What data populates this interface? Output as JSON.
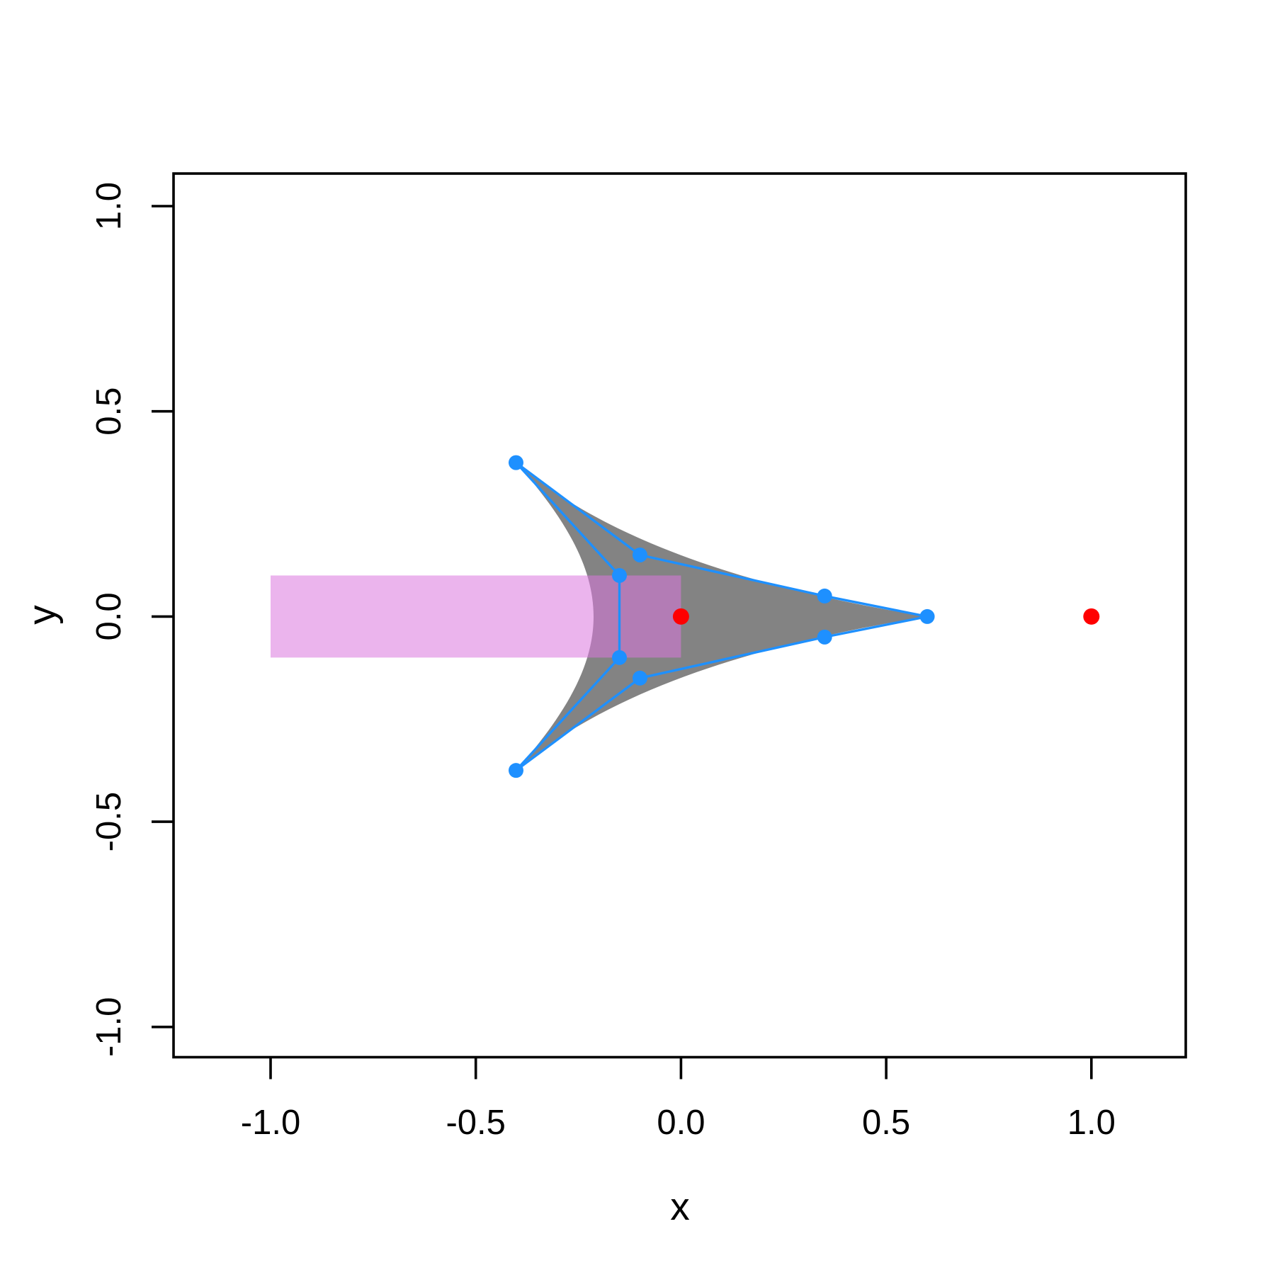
{
  "chart_data": {
    "type": "scatter",
    "title": "",
    "xlabel": "x",
    "ylabel": "y",
    "xlim": [
      -1.236,
      1.23
    ],
    "ylim": [
      -1.073,
      1.079
    ],
    "grid": false,
    "background_color": "#ffffff",
    "axis_color": "#000000",
    "x_ticks": {
      "values": [
        -1.0,
        -0.5,
        0.0,
        0.5,
        1.0
      ],
      "labels": [
        "-1.0",
        "-0.5",
        "0.0",
        "0.5",
        "1.0"
      ]
    },
    "y_ticks": {
      "values": [
        -1.0,
        -0.5,
        0.0,
        0.5,
        1.0
      ],
      "labels": [
        "-1.0",
        "-0.5",
        "0.0",
        "0.5",
        "1.0"
      ]
    },
    "gray_region": {
      "name": "curved-triangle-region",
      "fill": "#838383",
      "cusps": [
        [
          0.6,
          0.0
        ],
        [
          -0.402,
          0.375
        ],
        [
          -0.402,
          -0.375
        ]
      ],
      "start": [
        -0.402,
        0.375
      ],
      "bezier_edges": [
        {
          "c1": [
            -0.2,
            0.2
          ],
          "c2": [
            0.13,
            0.075
          ],
          "end": [
            0.6,
            0.0
          ]
        },
        {
          "c1": [
            0.13,
            -0.075
          ],
          "c2": [
            -0.2,
            -0.2
          ],
          "end": [
            -0.402,
            -0.375
          ]
        },
        {
          "c1": [
            -0.15,
            -0.09
          ],
          "c2": [
            -0.15,
            0.09
          ],
          "end": [
            -0.402,
            0.375
          ]
        }
      ]
    },
    "violet_rectangle": {
      "name": "violet-band",
      "x_range": [
        -1.0,
        0.0
      ],
      "y_range": [
        -0.1,
        0.1
      ],
      "fill_rgba": "rgba(218,118,222,0.55)"
    },
    "blue_polygon": {
      "name": "inscribed-polygon",
      "stroke": "#1E90FF",
      "marker_color": "#1E90FF",
      "vertices": [
        [
          0.6,
          0.0
        ],
        [
          0.35,
          0.05
        ],
        [
          -0.1,
          0.15
        ],
        [
          -0.402,
          0.375
        ],
        [
          -0.15,
          0.1
        ],
        [
          -0.15,
          -0.1
        ],
        [
          -0.402,
          -0.375
        ],
        [
          -0.1,
          -0.15
        ],
        [
          0.35,
          -0.05
        ]
      ]
    },
    "red_points": {
      "name": "red-markers",
      "color": "#FF0000",
      "points": [
        [
          0.0,
          0.0
        ],
        [
          1.0,
          0.0
        ]
      ]
    }
  }
}
